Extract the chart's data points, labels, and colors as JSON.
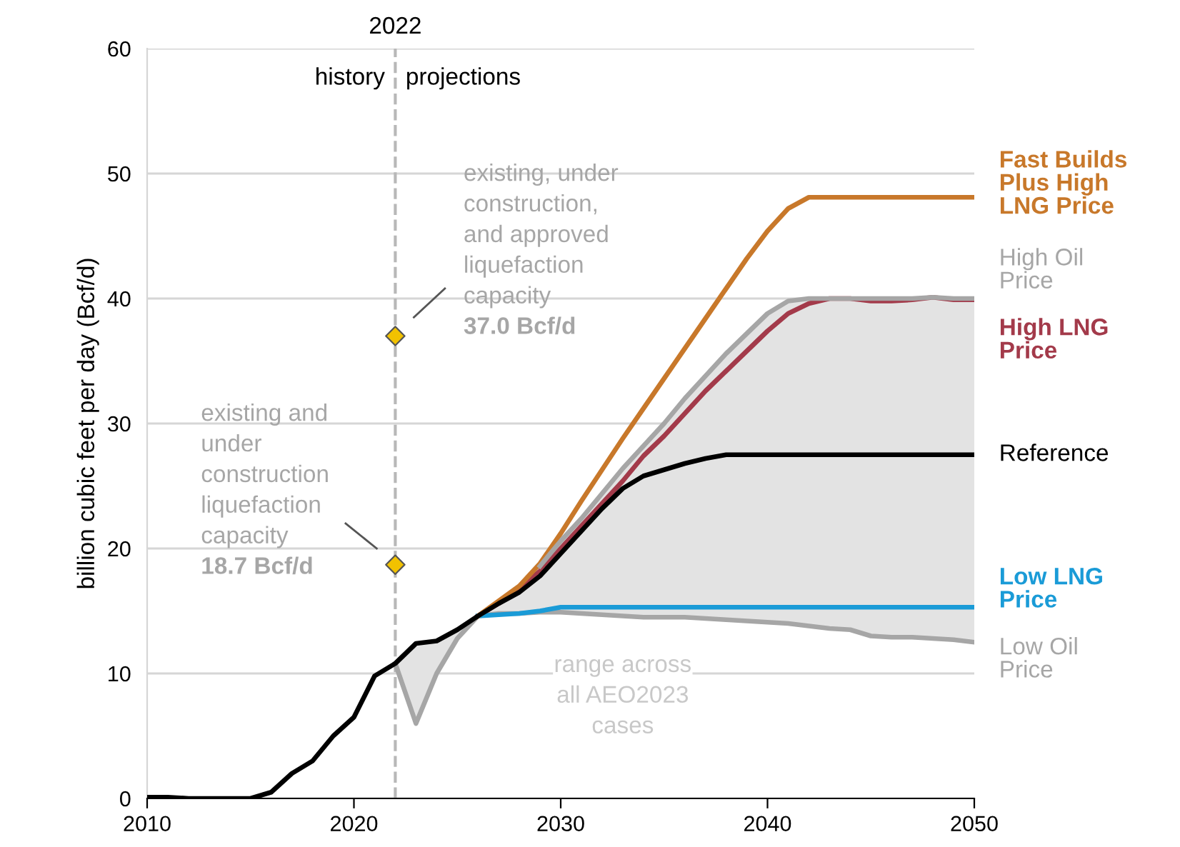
{
  "chart_data": {
    "type": "line",
    "ylabel": "billion cubic feet per day (Bcf/d)",
    "xlim": [
      2010,
      2050
    ],
    "xticks": [
      2010,
      2020,
      2030,
      2040,
      2050
    ],
    "ylim": [
      0,
      60
    ],
    "yticks": [
      0,
      10,
      20,
      30,
      40,
      50,
      60
    ],
    "grid": "y",
    "legend": false,
    "line_style": "solid",
    "marker": "none",
    "series": [
      {
        "name": "Low Oil Price",
        "color": "#a6a6a6",
        "x": [
          2022,
          2023,
          2024,
          2025,
          2026,
          2027,
          2028,
          2029,
          2030,
          2031,
          2032,
          2033,
          2034,
          2035,
          2036,
          2037,
          2038,
          2039,
          2040,
          2041,
          2042,
          2043,
          2044,
          2045,
          2046,
          2047,
          2048,
          2049,
          2050
        ],
        "values": [
          10.8,
          6.0,
          10.0,
          12.8,
          14.6,
          14.8,
          14.8,
          14.9,
          14.9,
          14.8,
          14.7,
          14.6,
          14.5,
          14.5,
          14.5,
          14.4,
          14.3,
          14.2,
          14.1,
          14.0,
          13.8,
          13.6,
          13.5,
          13.0,
          12.9,
          12.9,
          12.8,
          12.7,
          12.5
        ]
      },
      {
        "name": "High LNG Price",
        "color": "#a33a4a",
        "x": [
          2026,
          2027,
          2028,
          2029,
          2030,
          2031,
          2032,
          2033,
          2034,
          2035,
          2036,
          2037,
          2038,
          2039,
          2040,
          2041,
          2042,
          2043,
          2044,
          2045,
          2046,
          2047,
          2048,
          2049,
          2050
        ],
        "values": [
          14.6,
          15.6,
          16.8,
          18.2,
          20.0,
          21.8,
          23.6,
          25.4,
          27.4,
          29.0,
          30.8,
          32.6,
          34.2,
          35.8,
          37.4,
          38.8,
          39.6,
          40.0,
          40.0,
          39.8,
          39.8,
          39.9,
          40.1,
          39.9,
          39.9
        ]
      },
      {
        "name": "Low LNG Price",
        "color": "#1a9bd7",
        "x": [
          2026,
          2027,
          2028,
          2029,
          2030,
          2035,
          2040,
          2045,
          2050
        ],
        "values": [
          14.6,
          14.7,
          14.8,
          15.0,
          15.3,
          15.3,
          15.3,
          15.3,
          15.3
        ]
      },
      {
        "name": "Fast Builds Plus High LNG Price",
        "color": "#c8782a",
        "x": [
          2026,
          2027,
          2028,
          2029,
          2030,
          2031,
          2032,
          2033,
          2034,
          2035,
          2036,
          2037,
          2038,
          2039,
          2040,
          2041,
          2042,
          2043,
          2050
        ],
        "values": [
          14.6,
          15.8,
          17.0,
          18.8,
          21.2,
          23.8,
          26.3,
          28.8,
          31.2,
          33.6,
          36.0,
          38.4,
          40.8,
          43.2,
          45.4,
          47.2,
          48.1,
          48.1,
          48.1
        ]
      },
      {
        "name": "High Oil Price",
        "color": "#a6a6a6",
        "x": [
          2029,
          2030,
          2031,
          2032,
          2033,
          2034,
          2035,
          2036,
          2037,
          2038,
          2039,
          2040,
          2041,
          2042,
          2043,
          2044,
          2045,
          2046,
          2047,
          2048,
          2049,
          2050
        ],
        "values": [
          18.6,
          20.6,
          22.4,
          24.4,
          26.4,
          28.2,
          30.0,
          32.0,
          33.8,
          35.6,
          37.2,
          38.8,
          39.8,
          40.0,
          40.0,
          40.0,
          40.0,
          40.0,
          40.0,
          40.1,
          40.0,
          40.0
        ]
      },
      {
        "name": "Reference",
        "color": "#000000",
        "x": [
          2010,
          2011,
          2012,
          2013,
          2014,
          2015,
          2016,
          2017,
          2018,
          2019,
          2020,
          2021,
          2022,
          2023,
          2024,
          2025,
          2026,
          2027,
          2028,
          2029,
          2030,
          2031,
          2032,
          2033,
          2034,
          2035,
          2036,
          2037,
          2038,
          2039,
          2040,
          2041,
          2042,
          2043,
          2044,
          2045,
          2046,
          2047,
          2048,
          2049,
          2050
        ],
        "values": [
          0.1,
          0.1,
          0,
          0,
          0,
          0,
          0.5,
          2.0,
          3.0,
          5.0,
          6.5,
          9.8,
          10.8,
          12.4,
          12.6,
          13.5,
          14.6,
          15.6,
          16.5,
          17.8,
          19.6,
          21.4,
          23.2,
          24.8,
          25.8,
          26.3,
          26.8,
          27.2,
          27.5,
          27.5,
          27.5,
          27.5,
          27.5,
          27.5,
          27.5,
          27.5,
          27.5,
          27.5,
          27.5,
          27.5,
          27.5
        ],
        "lower": [
          null,
          null,
          null,
          null,
          null,
          null,
          null,
          null,
          null,
          null,
          null,
          null,
          10.8,
          6.0,
          10.0,
          12.8,
          14.6,
          14.8,
          14.8,
          14.9,
          14.9,
          14.8,
          14.7,
          14.6,
          14.5,
          14.5,
          14.5,
          14.4,
          14.3,
          14.2,
          14.1,
          14.0,
          13.8,
          13.6,
          13.5,
          13.0,
          12.9,
          12.9,
          12.8,
          12.7,
          12.5
        ],
        "upper": [
          null,
          null,
          null,
          null,
          null,
          null,
          null,
          null,
          null,
          null,
          null,
          null,
          10.8,
          12.4,
          12.6,
          13.5,
          14.6,
          15.8,
          17.0,
          18.6,
          20.6,
          22.4,
          24.4,
          26.4,
          28.2,
          30.0,
          32.0,
          33.8,
          35.6,
          37.2,
          38.8,
          39.8,
          40.0,
          40.0,
          40.0,
          40.0,
          40.0,
          40.0,
          40.1,
          40.0,
          40.0
        ]
      },
      {
        "type": "scatter",
        "marker": "diamond",
        "color": "#f2c200",
        "x": [
          2022,
          2022
        ],
        "values": [
          37.0,
          18.7
        ]
      }
    ],
    "ref_lines": [
      {
        "axis": "x",
        "value": 2022,
        "label": "2022",
        "color": "#b8b8b8",
        "line_style": "dashed"
      }
    ],
    "annotations": [
      "existing, under\nconstruction,\nand approved\nliquefaction\ncapacity\n37.0 Bcf/d",
      "existing and\nunder\nconstruction\nliquefaction\ncapacity\n18.7 Bcf/d",
      "range across\nall AEO2023\ncases",
      "history",
      "projections"
    ]
  }
}
